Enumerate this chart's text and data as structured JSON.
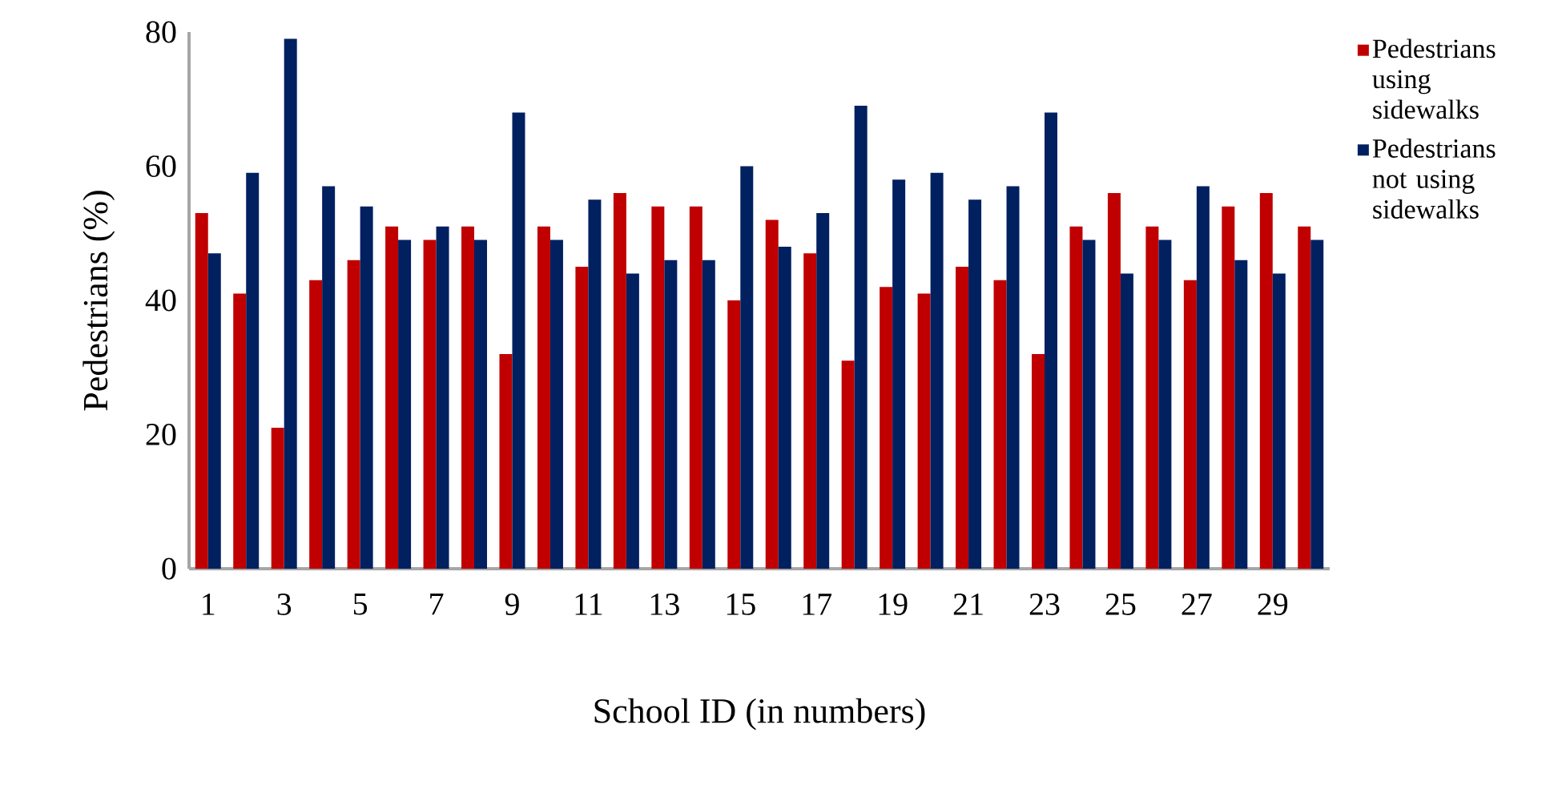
{
  "chart_data": {
    "type": "bar",
    "xlabel": "School ID (in numbers)",
    "ylabel": "Pedestrians (%)",
    "categories": [
      "1",
      null,
      "3",
      null,
      "5",
      null,
      "7",
      null,
      "9",
      null,
      "11",
      null,
      "13",
      null,
      "15",
      null,
      "17",
      null,
      "19",
      null,
      "21",
      null,
      "23",
      null,
      "25",
      null,
      "27",
      null,
      "29",
      null
    ],
    "series": [
      {
        "name": "Pedestrians using sidewalks",
        "color": "#c00000",
        "values": [
          53,
          41,
          21,
          43,
          46,
          51,
          49,
          51,
          32,
          51,
          45,
          56,
          54,
          54,
          40,
          52,
          47,
          31,
          42,
          41,
          45,
          43,
          32,
          51,
          56,
          51,
          43,
          54,
          56,
          51
        ]
      },
      {
        "name": "Pedestrians not using sidewalks",
        "color": "#002060",
        "values": [
          47,
          59,
          79,
          57,
          54,
          49,
          51,
          49,
          68,
          49,
          55,
          44,
          46,
          46,
          60,
          48,
          53,
          69,
          58,
          59,
          55,
          57,
          68,
          49,
          44,
          49,
          57,
          46,
          44,
          49
        ]
      }
    ],
    "ylim": [
      0,
      80
    ],
    "yticks": [
      0,
      20,
      40,
      60,
      80
    ],
    "grid": false,
    "legend": "right"
  }
}
